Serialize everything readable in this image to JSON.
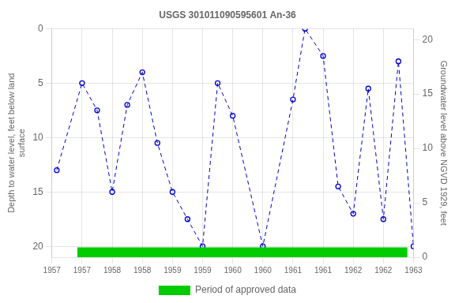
{
  "chart_data": {
    "type": "line",
    "title": "USGS 301011090595601 An-36",
    "ylabel": "Depth to water level, feet below land\nsurface",
    "y2label": "Groundwater level above NGVD 1929, feet",
    "x": [
      1957.08,
      1957.5,
      1957.75,
      1958.0,
      1958.25,
      1958.5,
      1958.75,
      1959.0,
      1959.25,
      1959.5,
      1959.75,
      1960.0,
      1960.5,
      1961.0,
      1961.2,
      1961.5,
      1961.75,
      1962.0,
      1962.25,
      1962.5,
      1962.75,
      1963.0
    ],
    "series": [
      {
        "values": [
          13.0,
          5.0,
          7.5,
          15.0,
          7.0,
          4.0,
          10.5,
          15.0,
          17.5,
          20.0,
          5.0,
          8.0,
          20.0,
          6.5,
          0.0,
          2.5,
          14.5,
          17.0,
          5.5,
          17.5,
          3.0,
          20.0
        ],
        "color": "#0000cc",
        "marker": "circle",
        "line_style": "dashed"
      },
      {
        "name": "Period of approved data",
        "type": "span",
        "color": "#00cc00",
        "x": [
          1957.42,
          1962.9
        ],
        "y": [
          20.1,
          21
        ]
      }
    ],
    "xlim": [
      1957,
      1963
    ],
    "xticks": [
      1957,
      {
        "value": 1957.5,
        "label": "1957"
      },
      1958,
      {
        "value": 1958.5,
        "label": "1958"
      },
      1959,
      {
        "value": 1959.5,
        "label": "1959"
      },
      1960,
      {
        "value": 1960.5,
        "label": "1960"
      },
      1961,
      {
        "value": 1961.5,
        "label": "1961"
      },
      1962,
      {
        "value": 1962.5,
        "label": "1962"
      },
      1963
    ],
    "ylim": [
      21,
      0
    ],
    "yticks": [
      0,
      5,
      10,
      15,
      20
    ],
    "y2lim": [
      0,
      21
    ],
    "y2ticks": [
      0,
      5,
      10,
      15,
      20
    ],
    "grid": true,
    "legend": "bottom"
  }
}
